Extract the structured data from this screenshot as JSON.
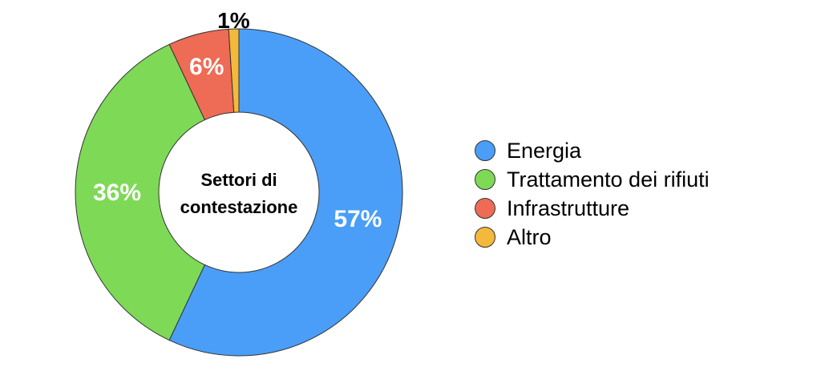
{
  "chart_data": {
    "type": "pie",
    "subtype": "donut",
    "center_title_lines": [
      "Settori di",
      "contestazione"
    ],
    "slices": [
      {
        "label": "Energia",
        "value": 57,
        "display": "57%",
        "color": "#4A9EF8",
        "label_color": "#ffffff"
      },
      {
        "label": "Trattamento dei rifiuti",
        "value": 36,
        "display": "36%",
        "color": "#7ED957",
        "label_color": "#ffffff"
      },
      {
        "label": "Infrastrutture",
        "value": 6,
        "display": "6%",
        "color": "#EE6B55",
        "label_color": "#ffffff"
      },
      {
        "label": "Altro",
        "value": 1,
        "display": "1%",
        "color": "#F2B93B",
        "label_color": "#000000"
      }
    ],
    "legend_position": "right"
  }
}
